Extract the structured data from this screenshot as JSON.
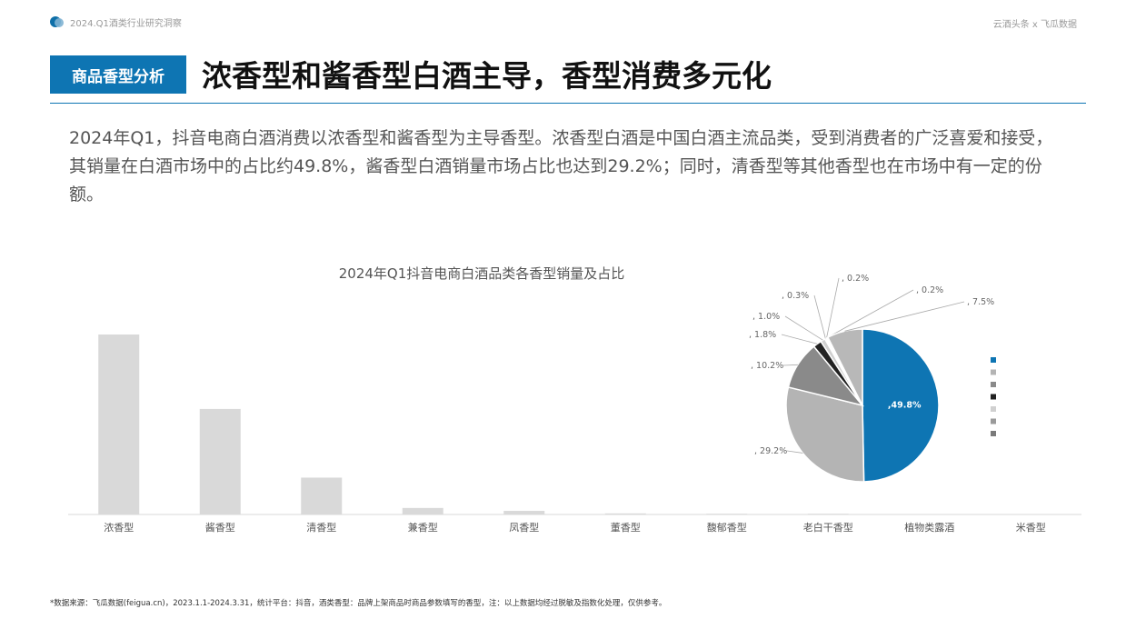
{
  "header": {
    "report_title": "2024.Q1酒类行业研究洞察",
    "source_brand": "云酒头条 x 飞瓜数据"
  },
  "section": {
    "badge": "商品香型分析",
    "headline": "浓香型和酱香型白酒主导，香型消费多元化"
  },
  "intro": "2024年Q1，抖音电商白酒消费以浓香型和酱香型为主导香型。浓香型白酒是中国白酒主流品类，受到消费者的广泛喜爱和接受，其销量在白酒市场中的占比约49.8%，酱香型白酒销量市场占比也达到29.2%；同时，清香型等其他香型也在市场中有一定的份额。",
  "chart_data": [
    {
      "type": "bar",
      "title": "2024年Q1抖音电商白酒品类各香型销量及占比",
      "categories": [
        "浓香型",
        "酱香型",
        "清香型",
        "兼香型",
        "凤香型",
        "董香型",
        "馥郁香型",
        "老白干香型",
        "植物类露酒",
        "米香型"
      ],
      "values": [
        49.8,
        29.2,
        10.2,
        1.8,
        1.0,
        0.3,
        0.2,
        0.2,
        0.1,
        0.1
      ],
      "colors": {
        "bar": "#d9d9d9",
        "axis": "#d9d9d9"
      }
    },
    {
      "type": "pie",
      "slices": [
        {
          "value": 49.8,
          "label": ",49.8%",
          "color": "#0e75b3",
          "inside": true
        },
        {
          "value": 29.2,
          "label": ", 29.2%",
          "color": "#b4b4b4"
        },
        {
          "value": 10.2,
          "label": ", 10.2%",
          "color": "#8a8a8a"
        },
        {
          "value": 1.8,
          "label": ", 1.8%",
          "color": "#222222"
        },
        {
          "value": 1.0,
          "label": ", 1.0%",
          "color": "#d0d0d0"
        },
        {
          "value": 0.3,
          "label": ", 0.3%",
          "color": "#9a9a9a"
        },
        {
          "value": 0.2,
          "label": ", 0.2%",
          "color": "#7a7a7a"
        },
        {
          "value": 0.2,
          "label": ", 0.2%",
          "color": "#c8c8c8"
        },
        {
          "value": 7.5,
          "label": ", 7.5%",
          "color": "#b8b8b8"
        }
      ],
      "legend_colors": [
        "#0e75b3",
        "#b4b4b4",
        "#8a8a8a",
        "#222222",
        "#d0d0d0",
        "#9a9a9a",
        "#7a7a7a"
      ],
      "legend_placement": "right"
    }
  ],
  "footnote": "*数据来源：飞瓜数据(feigua.cn)，2023.1.1-2024.3.31，统计平台：抖音，酒类香型：品牌上架商品时商品参数填写的香型，注：以上数据均经过脱敏及指数化处理，仅供参考。"
}
